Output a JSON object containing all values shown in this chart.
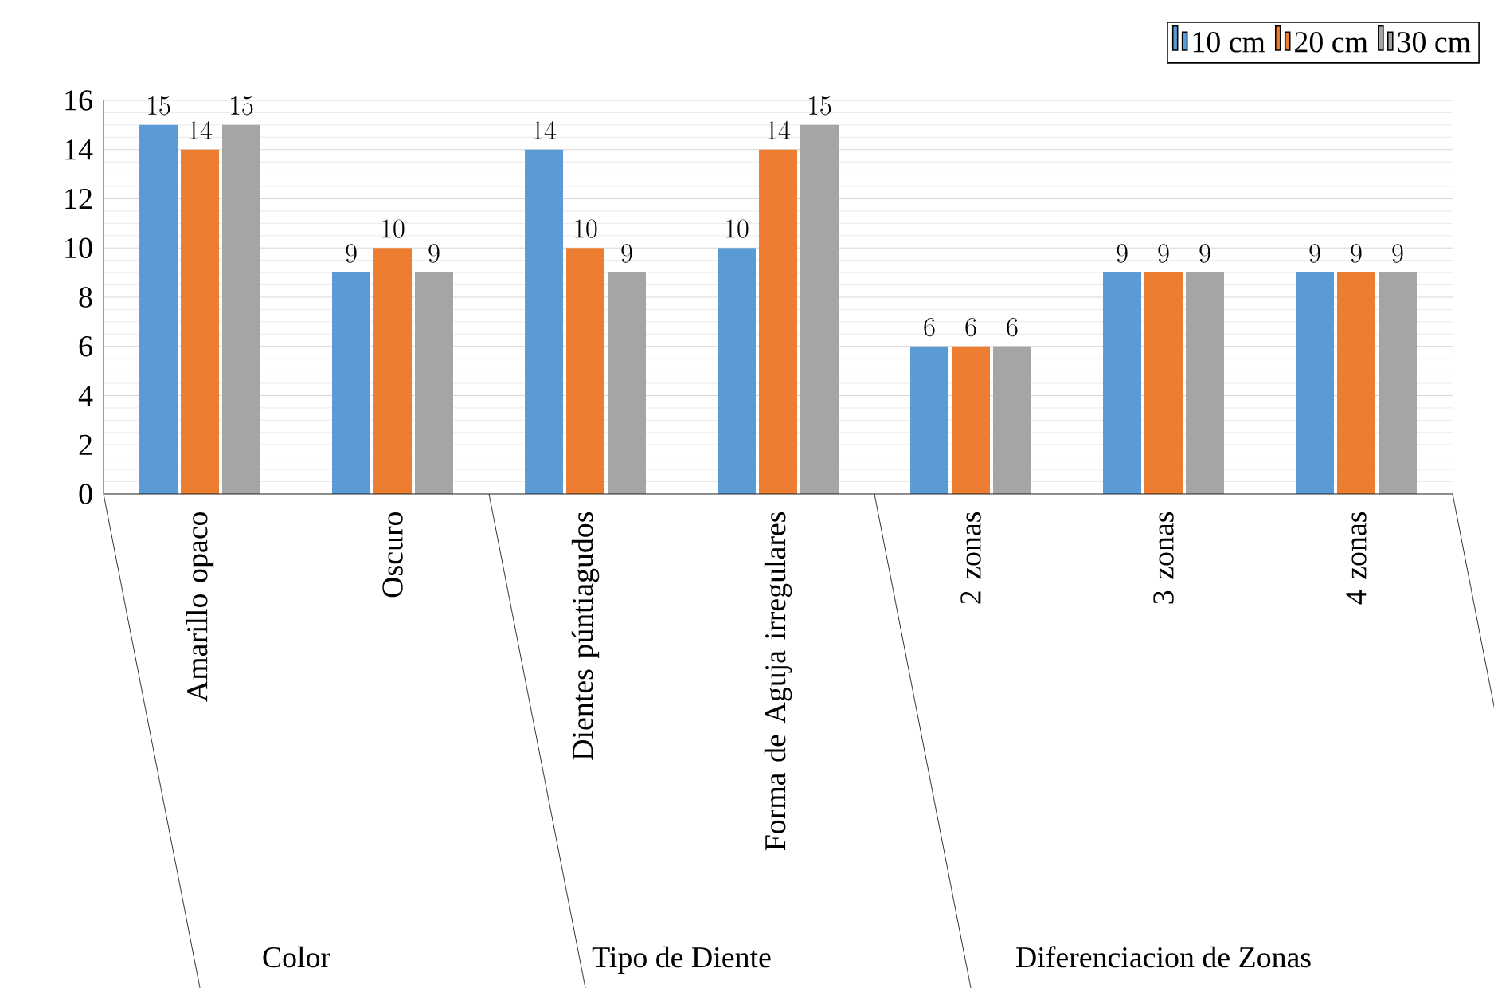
{
  "chart_data": {
    "type": "bar",
    "categories": [
      "Amarillo opaco",
      "Oscuro",
      "Dientes púntiagudos",
      "Forma de Aguja irregulares",
      "2 zonas",
      "3 zonas",
      "4 zonas"
    ],
    "series": [
      {
        "name": "10 cm",
        "color": "#5b9bd5",
        "values": [
          15,
          9,
          14,
          10,
          6,
          9,
          9
        ]
      },
      {
        "name": "20 cm",
        "color": "#ed7d31",
        "values": [
          14,
          10,
          10,
          14,
          6,
          9,
          9
        ]
      },
      {
        "name": "30 cm",
        "color": "#a5a5a5",
        "values": [
          15,
          9,
          9,
          15,
          6,
          9,
          9
        ]
      }
    ],
    "annotations": [
      "Color",
      "Tipo de Diente",
      "Diferenciacion de Zonas"
    ],
    "ylim": [
      0,
      16
    ],
    "yticks": [
      0,
      2,
      4,
      6,
      8,
      10,
      12,
      14,
      16
    ],
    "grid": "y",
    "legend": "top right",
    "data_labels": true
  }
}
